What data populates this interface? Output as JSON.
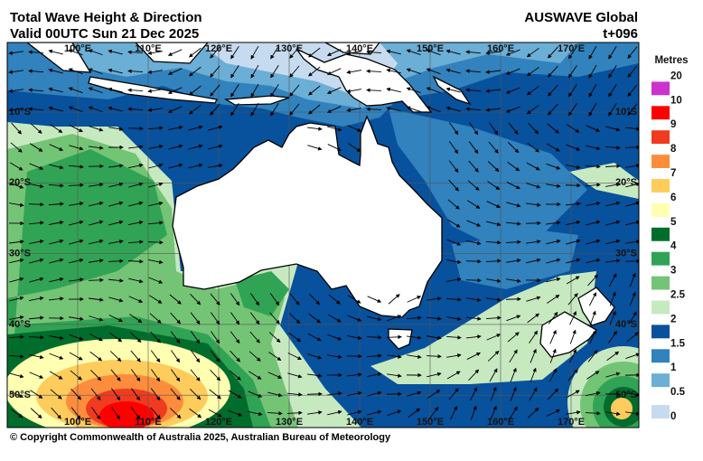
{
  "header": {
    "title": "Total Wave Height & Direction",
    "valid": "Valid 00UTC Sun 21 Dec 2025",
    "model": "AUSWAVE Global",
    "step": "t+096"
  },
  "map": {
    "lon_labels": [
      "100°E",
      "110°E",
      "120°E",
      "130°E",
      "140°E",
      "150°E",
      "160°E",
      "170°E"
    ],
    "lat_labels": [
      "10°S",
      "20°S",
      "30°S",
      "40°S",
      "50°S"
    ]
  },
  "legend": {
    "title": "Metres",
    "levels": [
      0,
      0.5,
      1,
      1.5,
      2,
      2.5,
      3,
      4,
      5,
      6,
      7,
      8,
      9,
      10,
      20
    ],
    "colors": [
      "#c6dbef",
      "#6baed6",
      "#3182bd",
      "#08519c",
      "#c7e9c0",
      "#74c476",
      "#31a354",
      "#006d2c",
      "#ffffb2",
      "#fecc5c",
      "#fd8d3c",
      "#f03b20",
      "#ff0000",
      "#cc33cc"
    ]
  },
  "footer": {
    "copyright": "© Copyright Commonwealth of Australia 2025, Australian Bureau of Meteorology"
  }
}
